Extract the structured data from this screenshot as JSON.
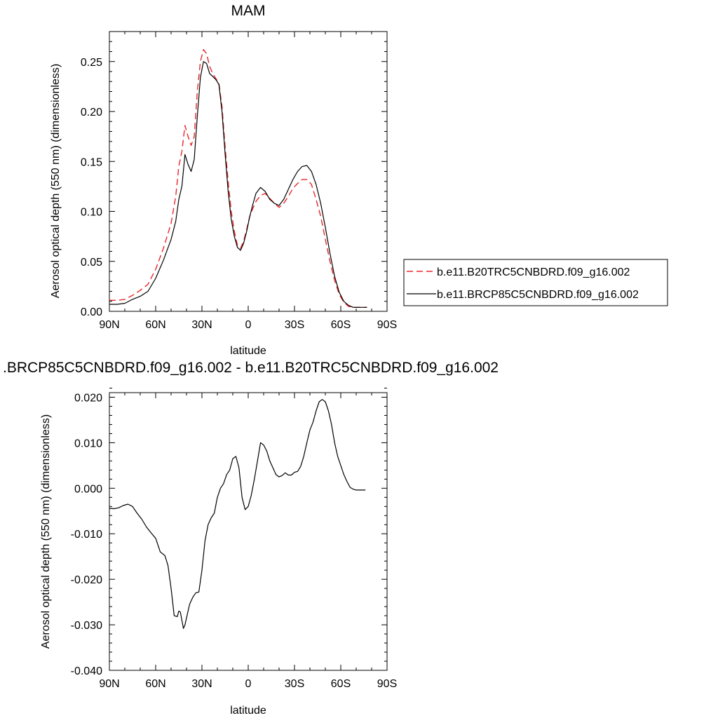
{
  "chart_data": [
    {
      "type": "line",
      "title": "MAM",
      "xlabel": "latitude",
      "ylabel": "Aerosol optical depth (550 nm) (dimensionless)",
      "xticks": [
        "90N",
        "60N",
        "30N",
        "0",
        "30S",
        "60S",
        "90S"
      ],
      "yticks": [
        "0.00",
        "0.05",
        "0.10",
        "0.15",
        "0.20",
        "0.25"
      ],
      "xlim": [
        90,
        -90
      ],
      "ylim": [
        0,
        0.28
      ],
      "grid": false,
      "legend_position": "right",
      "series": [
        {
          "name": "b.e11.B20TRC5CNBDRD.f09_g16.002",
          "color": "#e8262a",
          "dash": "dashed",
          "x": [
            90,
            85,
            80,
            75,
            70,
            65,
            60,
            55,
            50,
            47,
            45,
            43,
            41,
            39,
            37,
            35,
            33,
            31,
            29,
            27,
            25,
            23,
            21,
            19,
            17,
            15,
            13,
            11,
            9,
            7,
            5,
            3,
            1,
            -1,
            -3,
            -5,
            -8,
            -11,
            -14,
            -17,
            -20,
            -23,
            -26,
            -29,
            -32,
            -35,
            -38,
            -41,
            -44,
            -47,
            -50,
            -53,
            -56,
            -59,
            -62,
            -65,
            -68,
            -71,
            -74,
            -77
          ],
          "y": [
            0.011,
            0.011,
            0.012,
            0.016,
            0.021,
            0.027,
            0.042,
            0.063,
            0.088,
            0.115,
            0.145,
            0.16,
            0.186,
            0.175,
            0.166,
            0.175,
            0.22,
            0.25,
            0.262,
            0.258,
            0.245,
            0.238,
            0.233,
            0.228,
            0.205,
            0.165,
            0.13,
            0.1,
            0.08,
            0.066,
            0.063,
            0.07,
            0.082,
            0.095,
            0.103,
            0.11,
            0.116,
            0.118,
            0.113,
            0.108,
            0.104,
            0.108,
            0.115,
            0.123,
            0.128,
            0.132,
            0.132,
            0.127,
            0.112,
            0.095,
            0.072,
            0.05,
            0.031,
            0.017,
            0.009,
            0.005,
            0.004,
            0.004,
            0.004,
            0.004
          ]
        },
        {
          "name": "b.e11.BRCP85C5CNBDRD.f09_g16.002",
          "color": "#000000",
          "dash": "solid",
          "x": [
            90,
            85,
            80,
            75,
            70,
            65,
            60,
            55,
            50,
            47,
            45,
            43,
            41,
            39,
            37,
            35,
            33,
            31,
            29,
            27,
            25,
            23,
            21,
            19,
            17,
            15,
            13,
            11,
            9,
            7,
            5,
            3,
            1,
            -1,
            -3,
            -5,
            -8,
            -11,
            -14,
            -17,
            -20,
            -23,
            -26,
            -29,
            -32,
            -35,
            -38,
            -41,
            -44,
            -47,
            -50,
            -53,
            -56,
            -59,
            -62,
            -65,
            -68,
            -71,
            -74,
            -77
          ],
          "y": [
            0.007,
            0.007,
            0.008,
            0.012,
            0.015,
            0.02,
            0.033,
            0.051,
            0.072,
            0.09,
            0.112,
            0.125,
            0.157,
            0.147,
            0.14,
            0.152,
            0.195,
            0.234,
            0.25,
            0.248,
            0.238,
            0.235,
            0.232,
            0.227,
            0.2,
            0.158,
            0.12,
            0.092,
            0.075,
            0.064,
            0.061,
            0.068,
            0.08,
            0.095,
            0.107,
            0.118,
            0.124,
            0.12,
            0.112,
            0.108,
            0.106,
            0.112,
            0.122,
            0.132,
            0.14,
            0.145,
            0.146,
            0.14,
            0.127,
            0.108,
            0.084,
            0.058,
            0.035,
            0.019,
            0.01,
            0.006,
            0.004,
            0.004,
            0.004,
            0.004
          ]
        }
      ]
    },
    {
      "type": "line",
      "title": ".BRCP85C5CNBDRD.f09_g16.002 - b.e11.B20TRC5CNBDRD.f09_g16.002",
      "xlabel": "latitude",
      "ylabel": "Aerosol optical depth (550 nm) (dimensionless)",
      "xticks": [
        "90N",
        "60N",
        "30N",
        "0",
        "30S",
        "60S",
        "90S"
      ],
      "yticks": [
        "0.020",
        "0.010",
        "0.000",
        "-0.010",
        "-0.020",
        "-0.030",
        "-0.040"
      ],
      "xlim": [
        90,
        -90
      ],
      "ylim": [
        -0.04,
        0.021
      ],
      "grid": false,
      "series": [
        {
          "color": "#000000",
          "dash": "solid",
          "x": [
            90,
            87,
            84,
            81,
            78,
            75,
            72,
            69,
            66,
            63,
            60,
            57,
            54,
            52,
            50,
            48,
            46,
            45,
            44,
            43,
            42,
            41,
            40,
            38,
            36,
            34,
            32,
            30,
            28,
            26,
            24,
            22,
            20,
            18,
            16,
            14,
            12,
            10,
            8,
            6,
            4,
            2,
            0,
            -2,
            -4,
            -6,
            -8,
            -10,
            -12,
            -14,
            -16,
            -18,
            -20,
            -22,
            -24,
            -26,
            -28,
            -30,
            -32,
            -34,
            -36,
            -38,
            -40,
            -42,
            -44,
            -46,
            -48,
            -50,
            -52,
            -54,
            -56,
            -58,
            -60,
            -62,
            -64,
            -66,
            -68,
            -70,
            -72,
            -74,
            -76
          ],
          "y": [
            -0.0044,
            -0.0045,
            -0.0043,
            -0.0038,
            -0.0035,
            -0.004,
            -0.0055,
            -0.0068,
            -0.0085,
            -0.0098,
            -0.011,
            -0.014,
            -0.0148,
            -0.017,
            -0.022,
            -0.028,
            -0.0282,
            -0.027,
            -0.0272,
            -0.029,
            -0.0308,
            -0.03,
            -0.0285,
            -0.0255,
            -0.024,
            -0.023,
            -0.0228,
            -0.018,
            -0.0115,
            -0.008,
            -0.0065,
            -0.0055,
            -0.002,
            0.0,
            0.001,
            0.003,
            0.004,
            0.0065,
            0.007,
            0.0045,
            -0.002,
            -0.0047,
            -0.004,
            -0.0015,
            0.002,
            0.006,
            0.01,
            0.0095,
            0.0082,
            0.006,
            0.0045,
            0.003,
            0.0025,
            0.0028,
            0.0034,
            0.0029,
            0.0029,
            0.0035,
            0.0037,
            0.0048,
            0.007,
            0.01,
            0.0128,
            0.0145,
            0.017,
            0.019,
            0.0195,
            0.019,
            0.017,
            0.014,
            0.01,
            0.007,
            0.005,
            0.003,
            0.0015,
            0.0002,
            -0.0002,
            -0.0004,
            -0.0004,
            -0.0004,
            -0.0004
          ]
        }
      ]
    }
  ]
}
